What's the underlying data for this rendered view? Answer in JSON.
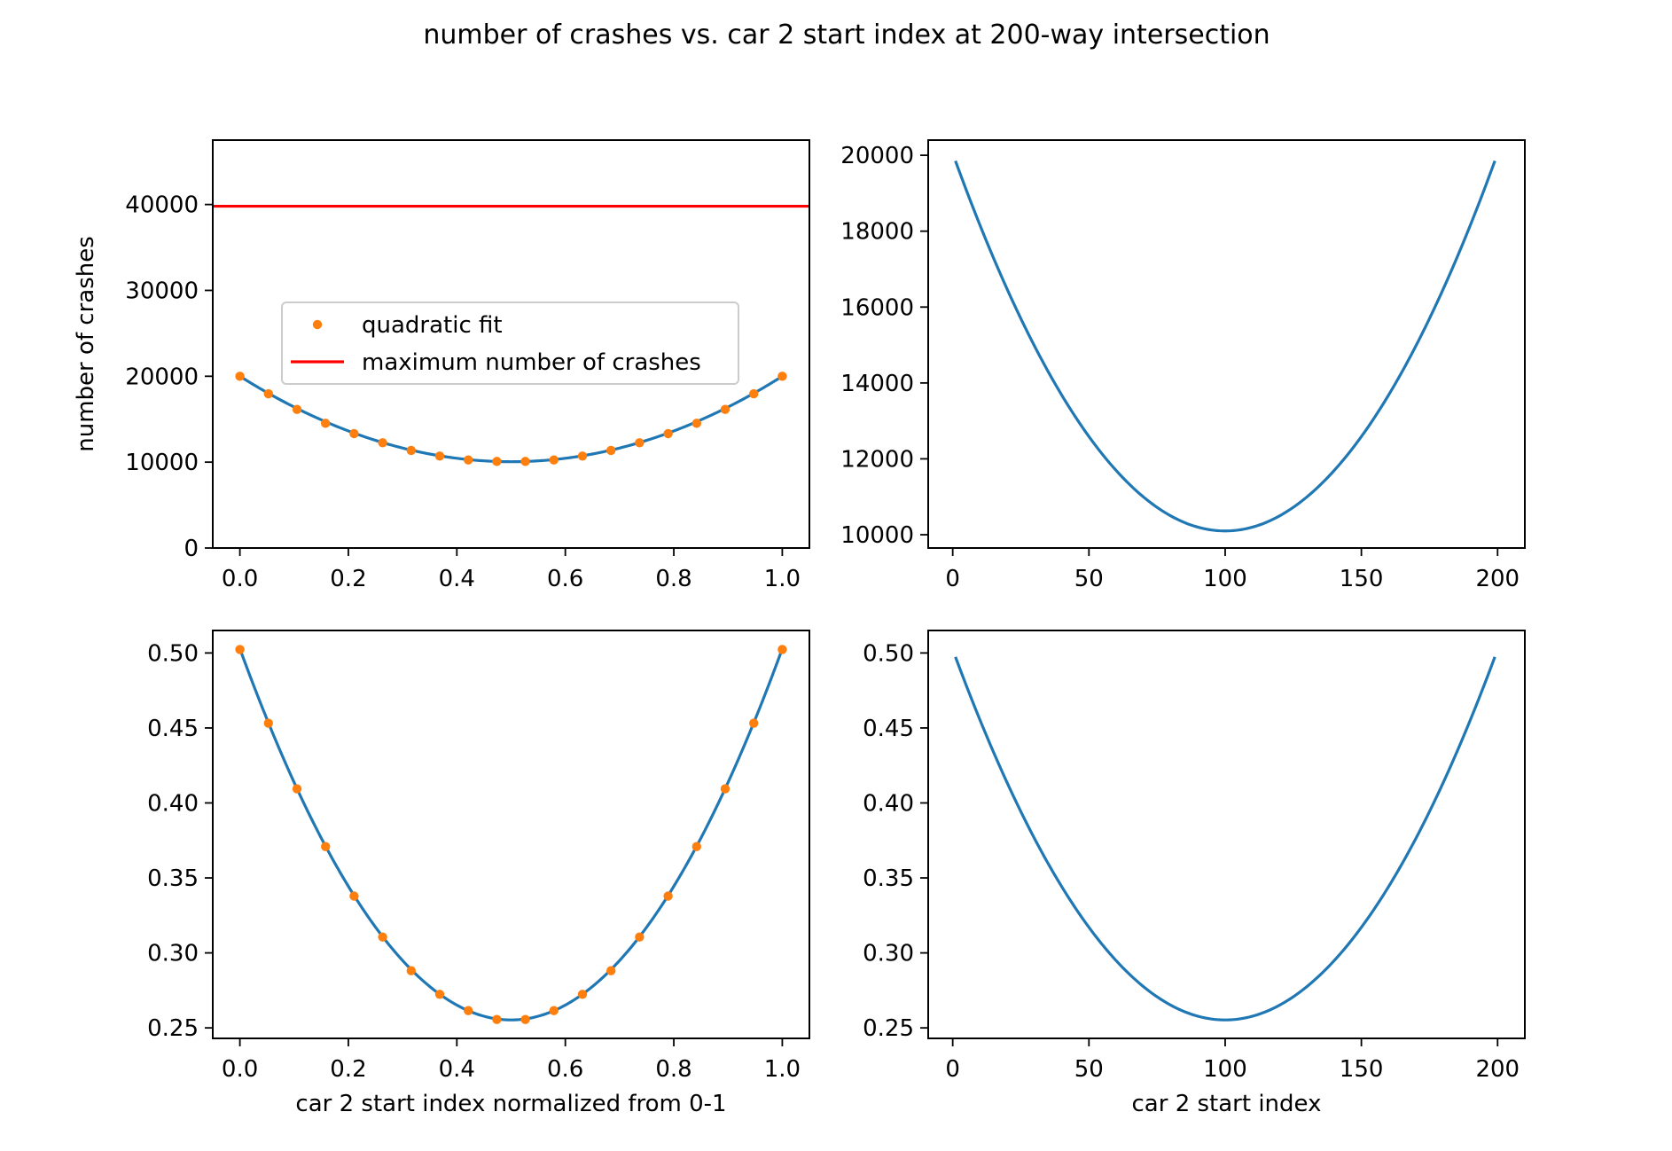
{
  "figure": {
    "title": "number of crashes vs. car 2 start index at 200-way intersection"
  },
  "colors": {
    "line": "#1f77b4",
    "points": "#ff7f0e",
    "max_line": "#ff0000",
    "axes": "#000000",
    "legend_border": "#cccccc"
  },
  "chart_data": [
    {
      "id": "top-left",
      "type": "line",
      "xlabel": "",
      "ylabel": "number of crashes",
      "xlim": [
        -0.05,
        1.05
      ],
      "ylim": [
        0,
        47500
      ],
      "xticks": [
        0.0,
        0.2,
        0.4,
        0.6,
        0.8,
        1.0
      ],
      "xtick_labels": [
        "0.0",
        "0.2",
        "0.4",
        "0.6",
        "0.8",
        "1.0"
      ],
      "yticks": [
        0,
        10000,
        20000,
        30000,
        40000
      ],
      "ytick_labels": [
        "0",
        "10000",
        "20000",
        "30000",
        "40000"
      ],
      "curve": {
        "x_range": [
          0,
          1
        ],
        "a": 39800,
        "h": 0.5,
        "k": 10050
      },
      "series": [
        {
          "name": "quadratic fit",
          "style": "points",
          "x": [
            0.0,
            0.0526,
            0.1053,
            0.1579,
            0.2105,
            0.2632,
            0.3158,
            0.3684,
            0.4211,
            0.4737,
            0.5263,
            0.5789,
            0.6316,
            0.6842,
            0.7368,
            0.7895,
            0.8421,
            0.8947,
            0.9474,
            1.0
          ],
          "y": [
            20000,
            17960,
            16140,
            14520,
            13320,
            12260,
            11370,
            10710,
            10250,
            10080,
            10080,
            10250,
            10710,
            11370,
            12260,
            13320,
            14520,
            16140,
            17960,
            20000
          ]
        },
        {
          "name": "maximum number of crashes",
          "style": "hline",
          "y": 39800
        }
      ],
      "legend": {
        "placement": "center-left",
        "entries": [
          "quadratic fit",
          "maximum number of crashes"
        ]
      }
    },
    {
      "id": "top-right",
      "type": "line",
      "xlabel": "",
      "ylabel": "",
      "xlim": [
        -9,
        210
      ],
      "ylim": [
        9650,
        20400
      ],
      "xticks": [
        0,
        50,
        100,
        150,
        200
      ],
      "xtick_labels": [
        "0",
        "50",
        "100",
        "150",
        "200"
      ],
      "yticks": [
        10000,
        12000,
        14000,
        16000,
        18000,
        20000
      ],
      "ytick_labels": [
        "10000",
        "12000",
        "14000",
        "16000",
        "18000",
        "20000"
      ],
      "curve": {
        "x_range": [
          1,
          199
        ],
        "a": 0.995,
        "h": 100,
        "k": 10100
      }
    },
    {
      "id": "bottom-left",
      "type": "line",
      "xlabel": "car 2 start index normalized from 0-1",
      "ylabel": "",
      "xlim": [
        -0.05,
        1.05
      ],
      "ylim": [
        0.243,
        0.515
      ],
      "xticks": [
        0.0,
        0.2,
        0.4,
        0.6,
        0.8,
        1.0
      ],
      "xtick_labels": [
        "0.0",
        "0.2",
        "0.4",
        "0.6",
        "0.8",
        "1.0"
      ],
      "yticks": [
        0.25,
        0.3,
        0.35,
        0.4,
        0.45,
        0.5
      ],
      "ytick_labels": [
        "0.25",
        "0.30",
        "0.35",
        "0.40",
        "0.45",
        "0.50"
      ],
      "curve": {
        "x_range": [
          0,
          1
        ],
        "a": 0.99,
        "h": 0.5,
        "k": 0.2553
      },
      "series": [
        {
          "name": "quadratic fit",
          "style": "points",
          "x": [
            0.0,
            0.0526,
            0.1053,
            0.1579,
            0.2105,
            0.2632,
            0.3158,
            0.3684,
            0.4211,
            0.4737,
            0.5263,
            0.5789,
            0.6316,
            0.6842,
            0.7368,
            0.7895,
            0.8421,
            0.8947,
            0.9474,
            1.0
          ],
          "y": [
            0.5023,
            0.4532,
            0.4094,
            0.3709,
            0.3379,
            0.3106,
            0.2881,
            0.2724,
            0.2615,
            0.2556,
            0.2556,
            0.2615,
            0.2724,
            0.2881,
            0.3106,
            0.3379,
            0.3709,
            0.4094,
            0.4532,
            0.5023
          ]
        }
      ]
    },
    {
      "id": "bottom-right",
      "type": "line",
      "xlabel": "car 2 start index",
      "ylabel": "",
      "xlim": [
        -9,
        210
      ],
      "ylim": [
        0.243,
        0.515
      ],
      "xticks": [
        0,
        50,
        100,
        150,
        200
      ],
      "xtick_labels": [
        "0",
        "50",
        "100",
        "150",
        "200"
      ],
      "yticks": [
        0.25,
        0.3,
        0.35,
        0.4,
        0.45,
        0.5
      ],
      "ytick_labels": [
        "0.25",
        "0.30",
        "0.35",
        "0.40",
        "0.45",
        "0.50"
      ],
      "curve": {
        "x_range": [
          1,
          199
        ],
        "a": 2.47e-05,
        "h": 100,
        "k": 0.2553
      }
    }
  ]
}
